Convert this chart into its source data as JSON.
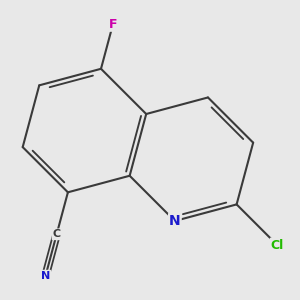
{
  "background_color": "#e8e8e8",
  "bond_color": "#3a3a3a",
  "bond_width": 1.5,
  "atom_colors": {
    "C": "#3a3a3a",
    "N": "#1a1acc",
    "F": "#cc00aa",
    "Cl": "#22bb00"
  },
  "font_size": 9,
  "figsize": [
    3.0,
    3.0
  ],
  "dpi": 100
}
